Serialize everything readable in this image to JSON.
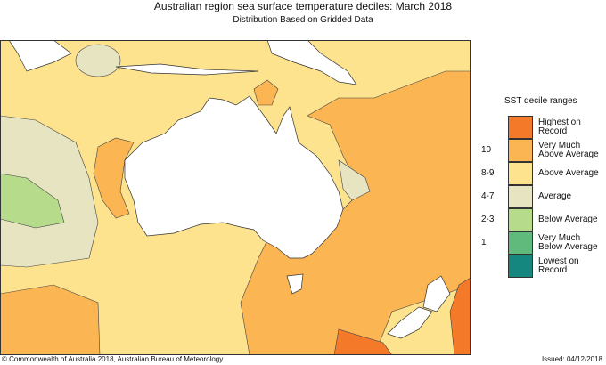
{
  "title": "Australian region sea surface temperature deciles:  March 2018",
  "subtitle": "Distribution Based on Gridded Data",
  "legend": {
    "title": "SST decile ranges",
    "items": [
      {
        "label": "Highest on Record",
        "color": "#f47a2a"
      },
      {
        "label": "Very Much Above Average",
        "color": "#fbb552"
      },
      {
        "label": "Above Average",
        "color": "#fde38d"
      },
      {
        "label": "Average",
        "color": "#e7e4c2"
      },
      {
        "label": "Below Average",
        "color": "#b6db8b"
      },
      {
        "label": "Very Much Below Average",
        "color": "#5fba7c"
      },
      {
        "label": "Lowest on Record",
        "color": "#16877f"
      }
    ],
    "ranges": [
      "10",
      "8-9",
      "4-7",
      "2-3",
      "1"
    ]
  },
  "footer": {
    "copyright": "© Commonwealth of Australia 2018, Australian Bureau of Meteorology",
    "issued": "Issued: 04/12/2018"
  }
}
